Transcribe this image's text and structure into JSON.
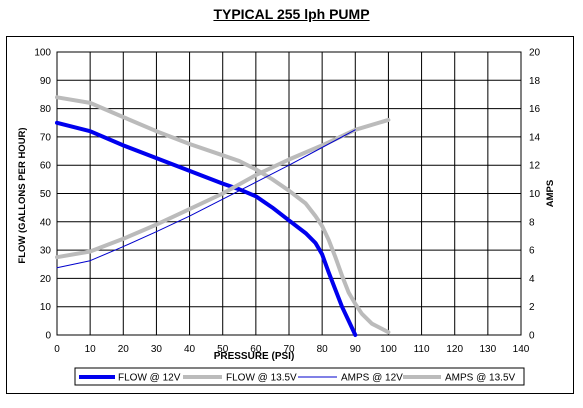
{
  "title": "TYPICAL 255 lph PUMP",
  "chart_data": {
    "type": "line",
    "title": "TYPICAL 255 lph PUMP",
    "xlabel": "PRESSURE (PSI)",
    "ylabel": "FLOW (GALLONS PER HOUR)",
    "y2label": "AMPS",
    "xlim": [
      0,
      140
    ],
    "ylim": [
      0,
      100
    ],
    "y2lim": [
      0,
      20
    ],
    "xticks": [
      0,
      10,
      20,
      30,
      40,
      50,
      60,
      70,
      80,
      90,
      100,
      110,
      120,
      130,
      140
    ],
    "yticks": [
      0,
      10,
      20,
      30,
      40,
      50,
      60,
      70,
      80,
      90,
      100
    ],
    "y2ticks": [
      0,
      2,
      4,
      6,
      8,
      10,
      12,
      14,
      16,
      18,
      20
    ],
    "grid": true,
    "legend": "bottom",
    "series": [
      {
        "name": "FLOW @ 12V",
        "axis": "left",
        "color": "#0000ee",
        "style": "thick",
        "x": [
          0,
          10,
          20,
          30,
          40,
          50,
          55,
          60,
          65,
          70,
          75,
          78,
          80,
          82,
          84,
          86,
          88,
          90
        ],
        "y": [
          75,
          72,
          67,
          62.5,
          58,
          53.5,
          51.5,
          49,
          45,
          40.5,
          36,
          32.5,
          28.5,
          22,
          16,
          10,
          5,
          0
        ]
      },
      {
        "name": "FLOW @ 13.5V",
        "axis": "left",
        "color": "#bbbbbb",
        "style": "thick",
        "x": [
          0,
          10,
          20,
          30,
          40,
          50,
          55,
          60,
          65,
          70,
          75,
          78,
          80,
          82,
          84,
          86,
          88,
          90,
          92,
          95,
          100
        ],
        "y": [
          84,
          82,
          77,
          72,
          67.5,
          63.5,
          61.5,
          58.5,
          55,
          51,
          46.5,
          42,
          38.5,
          33.5,
          27.5,
          21,
          15,
          11,
          7.5,
          4,
          1
        ]
      },
      {
        "name": "AMPS @ 12V",
        "axis": "right",
        "color": "#0000cc",
        "style": "thin",
        "x": [
          0,
          5,
          10,
          20,
          30,
          40,
          50,
          60,
          70,
          80,
          90
        ],
        "y": [
          4.75,
          5.0,
          5.25,
          6.25,
          7.3,
          8.4,
          9.6,
          10.8,
          12.0,
          13.25,
          14.5
        ]
      },
      {
        "name": "AMPS @ 13.5V",
        "axis": "right",
        "color": "#bbbbbb",
        "style": "thick",
        "x": [
          0,
          10,
          20,
          30,
          40,
          50,
          60,
          70,
          80,
          90,
          100
        ],
        "y": [
          5.5,
          5.9,
          6.8,
          7.8,
          8.9,
          10.0,
          11.3,
          12.4,
          13.4,
          14.5,
          15.2
        ]
      }
    ]
  }
}
